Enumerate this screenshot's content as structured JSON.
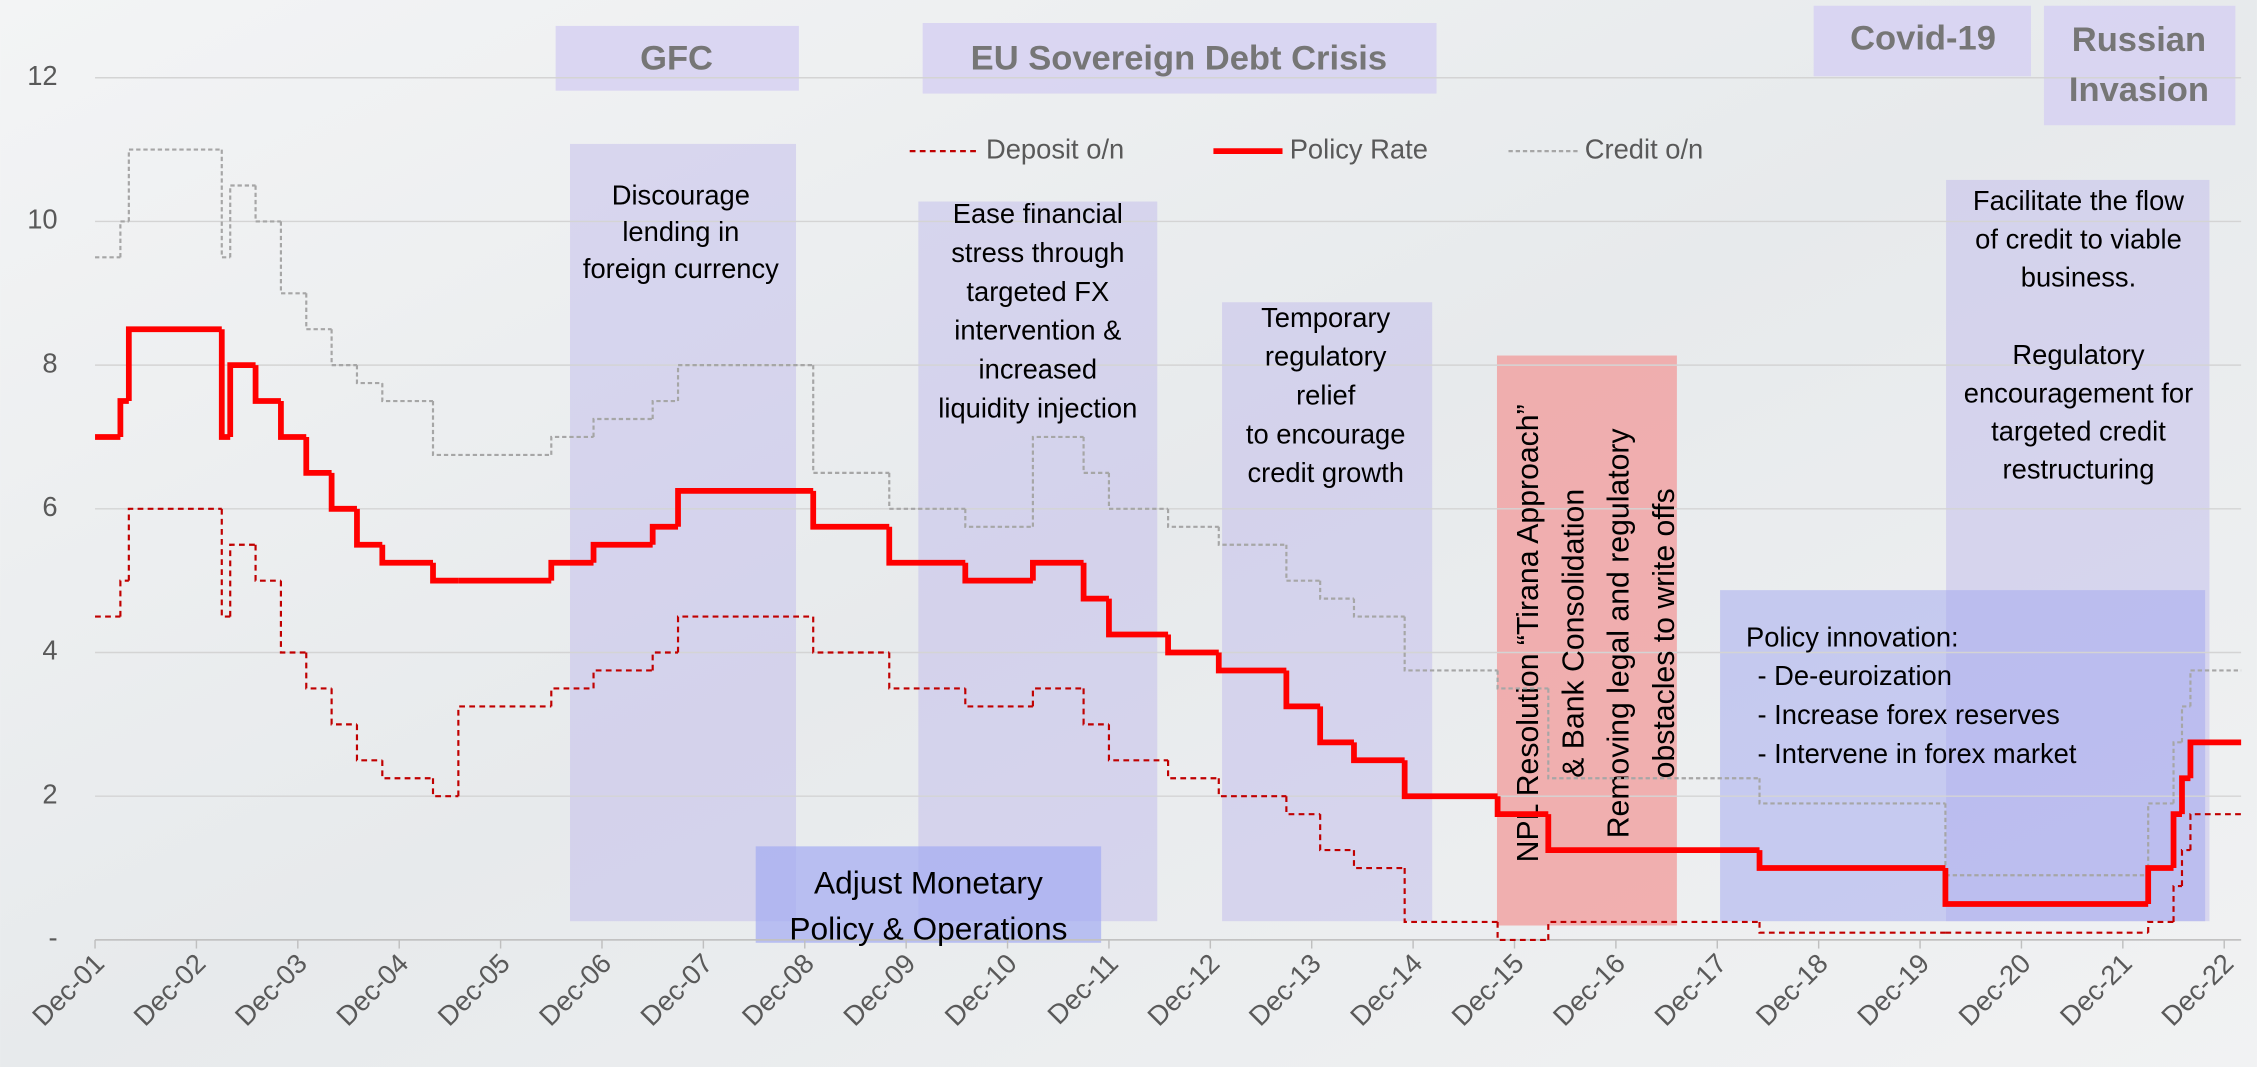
{
  "chart_data": {
    "type": "step",
    "x": [
      "2001-12",
      "2002-03",
      "2002-04",
      "2003-03",
      "2003-04",
      "2003-07",
      "2003-10",
      "2004-01",
      "2004-04",
      "2004-07",
      "2004-10",
      "2005-04",
      "2005-07",
      "2006-06",
      "2006-11",
      "2007-06",
      "2007-09",
      "2009-01",
      "2009-10",
      "2010-07",
      "2011-03",
      "2011-09",
      "2011-12",
      "2012-07",
      "2013-01",
      "2013-09",
      "2014-01",
      "2014-05",
      "2014-11",
      "2015-10",
      "2016-04",
      "2018-05",
      "2020-03",
      "2022-03",
      "2022-06",
      "2022-07",
      "2022-08"
    ],
    "series": [
      {
        "name": "Deposit o/n",
        "color": "#c00000",
        "values": [
          4.5,
          5.0,
          6.0,
          4.5,
          5.5,
          5.0,
          4.0,
          3.5,
          3.0,
          2.5,
          2.25,
          2.0,
          3.25,
          3.5,
          3.75,
          4.0,
          4.5,
          4.0,
          3.5,
          3.25,
          3.5,
          3.0,
          2.5,
          2.25,
          2.0,
          1.75,
          1.25,
          1.0,
          0.25,
          0.0,
          0.25,
          0.1,
          0.1,
          0.25,
          0.75,
          1.25,
          1.75
        ]
      },
      {
        "name": "Policy Rate",
        "color": "#ff0000",
        "values": [
          7.0,
          7.5,
          8.5,
          7.0,
          8.0,
          7.5,
          7.0,
          6.5,
          6.0,
          5.5,
          5.25,
          5.0,
          5.0,
          5.25,
          5.5,
          5.75,
          6.25,
          5.75,
          5.25,
          5.0,
          5.25,
          4.75,
          4.25,
          4.0,
          3.75,
          3.25,
          2.75,
          2.5,
          2.0,
          1.75,
          1.25,
          1.0,
          0.5,
          1.0,
          1.75,
          2.25,
          2.75
        ]
      },
      {
        "name": "Credit o/n",
        "color": "#a6a6a6",
        "values": [
          9.5,
          10.0,
          11.0,
          9.5,
          10.5,
          10.0,
          9.0,
          8.5,
          8.0,
          7.75,
          7.5,
          6.75,
          6.75,
          7.0,
          7.25,
          7.5,
          8.0,
          6.5,
          6.0,
          5.75,
          7.0,
          6.5,
          6.0,
          5.75,
          5.5,
          5.0,
          4.75,
          4.5,
          3.75,
          3.5,
          2.25,
          1.9,
          0.9,
          1.9,
          2.75,
          3.25,
          3.75
        ]
      }
    ],
    "xlim": [
      "2001-12",
      "2023-02"
    ],
    "xticks": [
      {
        "value": "2001-12",
        "label": "Dec-01"
      },
      {
        "value": "2002-12",
        "label": "Dec-02"
      },
      {
        "value": "2003-12",
        "label": "Dec-03"
      },
      {
        "value": "2004-12",
        "label": "Dec-04"
      },
      {
        "value": "2005-12",
        "label": "Dec-05"
      },
      {
        "value": "2006-12",
        "label": "Dec-06"
      },
      {
        "value": "2007-12",
        "label": "Dec-07"
      },
      {
        "value": "2008-12",
        "label": "Dec-08"
      },
      {
        "value": "2009-12",
        "label": "Dec-09"
      },
      {
        "value": "2010-12",
        "label": "Dec-10"
      },
      {
        "value": "2011-12",
        "label": "Dec-11"
      },
      {
        "value": "2012-12",
        "label": "Dec-12"
      },
      {
        "value": "2013-12",
        "label": "Dec-13"
      },
      {
        "value": "2014-12",
        "label": "Dec-14"
      },
      {
        "value": "2015-12",
        "label": "Dec-15"
      },
      {
        "value": "2016-12",
        "label": "Dec-16"
      },
      {
        "value": "2017-12",
        "label": "Dec-17"
      },
      {
        "value": "2018-12",
        "label": "Dec-18"
      },
      {
        "value": "2019-12",
        "label": "Dec-19"
      },
      {
        "value": "2020-12",
        "label": "Dec-20"
      },
      {
        "value": "2021-12",
        "label": "Dec-21"
      },
      {
        "value": "2022-12",
        "label": "Dec-22"
      }
    ],
    "ylim": [
      0,
      12
    ],
    "yticks": [
      {
        "value": 0,
        "label": "-"
      },
      2,
      4,
      6,
      8,
      10,
      12
    ],
    "grid": true,
    "legend": "top",
    "annotations": [
      [
        "GFC"
      ],
      [
        "EU Sovereign Debt Crisis"
      ],
      [
        "Covid-19"
      ],
      [
        "Russian",
        "Invasion"
      ],
      [
        "Discourage",
        "lending in",
        "foreign currency"
      ],
      [
        "Ease financial",
        "stress through",
        "targeted FX",
        "intervention &",
        "increased",
        "liquidity injection"
      ],
      [
        "Temporary",
        "regulatory",
        "relief",
        "to encourage",
        "credit growth"
      ],
      [
        "NPL Resolution  “Tirana Approach”",
        "& Bank Consolidation",
        "Removing legal and regulatory",
        "obstacles to write offs"
      ],
      [
        "Facilitate the flow",
        "of credit to viable",
        "business."
      ],
      [
        "Regulatory",
        "encouragement for",
        "targeted credit",
        "restructuring"
      ],
      [
        "Policy innovation:",
        "- De-euroization",
        "- Increase forex reserves",
        "- Intervene in forex market"
      ],
      [
        "Adjust  Monetary",
        "Policy & Operations"
      ]
    ]
  }
}
